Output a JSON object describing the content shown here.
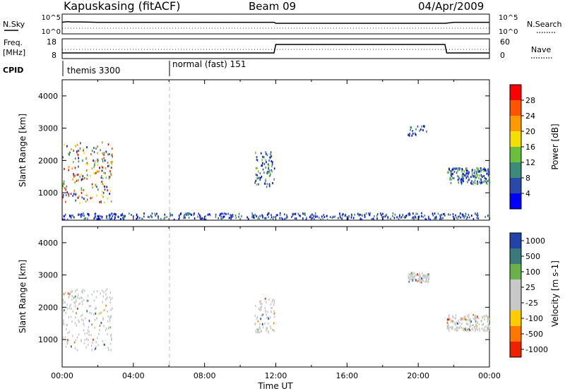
{
  "header": {
    "station": "Kapuskasing (fitACF)",
    "beam": "Beam 09",
    "date": "04/Apr/2009"
  },
  "strip1": {
    "left_label": "N.Sky",
    "right_label": "N.Search",
    "left_ticks": [
      "10^5",
      "10^0"
    ],
    "right_ticks": [
      "10^5",
      "10^0"
    ]
  },
  "strip2": {
    "left_label_1": "Freq.",
    "left_label_2": "[MHz]",
    "right_label": "Nave",
    "left_ticks": [
      "18",
      "8"
    ],
    "right_ticks": [
      "60",
      "0"
    ]
  },
  "cpid": {
    "label": "CPID",
    "modes": [
      {
        "name": "themis 3300",
        "start_hour": 0.0
      },
      {
        "name": "normal (fast) 151",
        "start_hour": 6.0
      }
    ]
  },
  "xaxis": {
    "label": "Time UT",
    "ticks": [
      "00:00",
      "04:00",
      "08:00",
      "12:00",
      "16:00",
      "20:00",
      "00:00"
    ]
  },
  "colors": {
    "power_scale": [
      "#0000ff",
      "#2a4aa8",
      "#3d8a7a",
      "#6abf3c",
      "#f4e000",
      "#ff9900",
      "#ff5500",
      "#ff0000"
    ],
    "velocity_scale": [
      "#2244aa",
      "#3a7a7a",
      "#6ab04c",
      "#c8c8c8",
      "#c8c8c8",
      "#ffcc00",
      "#ff7700",
      "#ee2200"
    ]
  },
  "chart_data": [
    {
      "type": "line",
      "title": "N.Sky / N.Search",
      "x_range": [
        0,
        24
      ],
      "series": [
        {
          "name": "N.Sky",
          "x": [
            0,
            0.3,
            0.5,
            1.0,
            2.0,
            4.0,
            6.0,
            8.0,
            10.0,
            11.9,
            12.0,
            14.0,
            16.0,
            18.0,
            20.0,
            21.5,
            22.0,
            24.0
          ],
          "values": [
            3.0,
            3.2,
            3.1,
            3.1,
            3.0,
            3.0,
            3.0,
            3.0,
            3.0,
            3.0,
            2.7,
            2.7,
            2.7,
            2.7,
            2.7,
            2.7,
            3.0,
            3.0
          ]
        }
      ]
    },
    {
      "type": "line",
      "title": "Freq / Nave",
      "x_range": [
        0,
        24
      ],
      "series": [
        {
          "name": "Freq",
          "x": [
            0,
            11.9,
            12.0,
            21.5,
            21.6,
            24
          ],
          "values": [
            10.5,
            10.5,
            15.5,
            15.5,
            10.5,
            10.5
          ]
        }
      ]
    },
    {
      "type": "heatmap",
      "title": "Power",
      "ylabel": "Slant Range [km]",
      "colorbar_label": "Power [dB]",
      "colorbar_ticks": [
        "28",
        "24",
        "20",
        "16",
        "12",
        "8",
        "4"
      ],
      "x_range": [
        0,
        24
      ],
      "y_range": [
        150,
        4500
      ],
      "yticks": [
        1000,
        2000,
        3000,
        4000
      ],
      "echo_regions": [
        {
          "t": [
            0.0,
            2.8
          ],
          "r": [
            700,
            2600
          ],
          "level": "high"
        },
        {
          "t": [
            0.0,
            24.0
          ],
          "r": [
            200,
            400
          ],
          "level": "low"
        },
        {
          "t": [
            10.8,
            11.9
          ],
          "r": [
            1200,
            2300
          ],
          "level": "mid"
        },
        {
          "t": [
            19.4,
            20.6
          ],
          "r": [
            2800,
            3100
          ],
          "level": "low"
        },
        {
          "t": [
            21.6,
            24.0
          ],
          "r": [
            1300,
            1800
          ],
          "level": "mid"
        }
      ]
    },
    {
      "type": "heatmap",
      "title": "Velocity",
      "ylabel": "Slant Range [km]",
      "colorbar_label": "Velocity [m s-1]",
      "colorbar_ticks": [
        "1000",
        "500",
        "100",
        "25",
        "-25",
        "-100",
        "-500",
        "-1000"
      ],
      "x_range": [
        0,
        24
      ],
      "y_range": [
        150,
        4500
      ],
      "yticks": [
        1000,
        2000,
        3000,
        4000
      ],
      "echo_regions": [
        {
          "t": [
            0.0,
            2.8
          ],
          "r": [
            700,
            2600
          ],
          "level": "near-zero"
        },
        {
          "t": [
            10.8,
            11.9
          ],
          "r": [
            1200,
            2300
          ],
          "level": "near-zero"
        },
        {
          "t": [
            19.4,
            20.6
          ],
          "r": [
            2800,
            3100
          ],
          "level": "near-zero"
        },
        {
          "t": [
            21.6,
            24.0
          ],
          "r": [
            1300,
            1800
          ],
          "level": "near-zero"
        }
      ]
    }
  ]
}
